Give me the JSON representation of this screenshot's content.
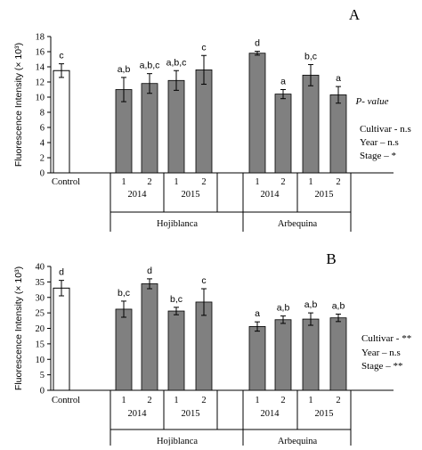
{
  "chart_data": [
    {
      "type": "bar",
      "panel_label": "A",
      "ylabel": "Fluorescence Intensity (× 10³)",
      "ylim": [
        0,
        18
      ],
      "yticks": [
        0,
        2,
        4,
        6,
        8,
        10,
        12,
        14,
        16,
        18
      ],
      "categories": [
        "Control",
        "Hojiblanca 2014 1",
        "Hojiblanca 2014 2",
        "Hojiblanca 2015 1",
        "Hojiblanca 2015 2",
        "Arbequina 2014 1",
        "Arbequina 2014 2",
        "Arbequina 2015 1",
        "Arbequina 2015 2"
      ],
      "tick_labels": [
        "Control",
        "1",
        "2",
        "1",
        "2",
        "1",
        "2",
        "1",
        "2"
      ],
      "values": [
        13.5,
        11.0,
        11.8,
        12.2,
        13.6,
        15.8,
        10.4,
        12.9,
        10.3
      ],
      "errors": [
        0.9,
        1.6,
        1.3,
        1.3,
        1.9,
        0.25,
        0.6,
        1.4,
        1.1
      ],
      "letters": [
        "c",
        "a,b",
        "a,b,c",
        "a,b,c",
        "c",
        "d",
        "a",
        "b,c",
        "a"
      ],
      "years": [
        "2014",
        "2015",
        "2014",
        "2015"
      ],
      "cultivars": [
        "Hojiblanca",
        "Arbequina"
      ],
      "stats": {
        "title": "P- value",
        "lines": [
          "Cultivar  - n.s",
          "Year – n.s",
          "Stage – *"
        ]
      }
    },
    {
      "type": "bar",
      "panel_label": "B",
      "ylabel": "Fluorescence Intensity (× 10³)",
      "ylim": [
        0,
        40
      ],
      "yticks": [
        0,
        5,
        10,
        15,
        20,
        25,
        30,
        35,
        40
      ],
      "categories": [
        "Control",
        "Hojiblanca 2014 1",
        "Hojiblanca 2014 2",
        "Hojiblanca 2015 1",
        "Hojiblanca 2015 2",
        "Arbequina 2014 1",
        "Arbequina 2014 2",
        "Arbequina 2015 1",
        "Arbequina 2015 2"
      ],
      "tick_labels": [
        "Control",
        "1",
        "2",
        "1",
        "2",
        "1",
        "2",
        "1",
        "2"
      ],
      "values": [
        33.0,
        26.2,
        34.4,
        25.6,
        28.5,
        20.6,
        22.8,
        23.0,
        23.4
      ],
      "errors": [
        2.5,
        2.6,
        1.6,
        1.2,
        4.3,
        1.5,
        1.2,
        2.0,
        1.2
      ],
      "letters": [
        "d",
        "b,c",
        "d",
        "b,c",
        "c",
        "a",
        "a,b",
        "a,b",
        "a,b"
      ],
      "years": [
        "2014",
        "2015",
        "2014",
        "2015"
      ],
      "cultivars": [
        "Hojiblanca",
        "Arbequina"
      ],
      "stats": {
        "title": "",
        "lines": [
          "Cultivar - **",
          "Year – n.s",
          "Stage – **"
        ]
      }
    }
  ]
}
